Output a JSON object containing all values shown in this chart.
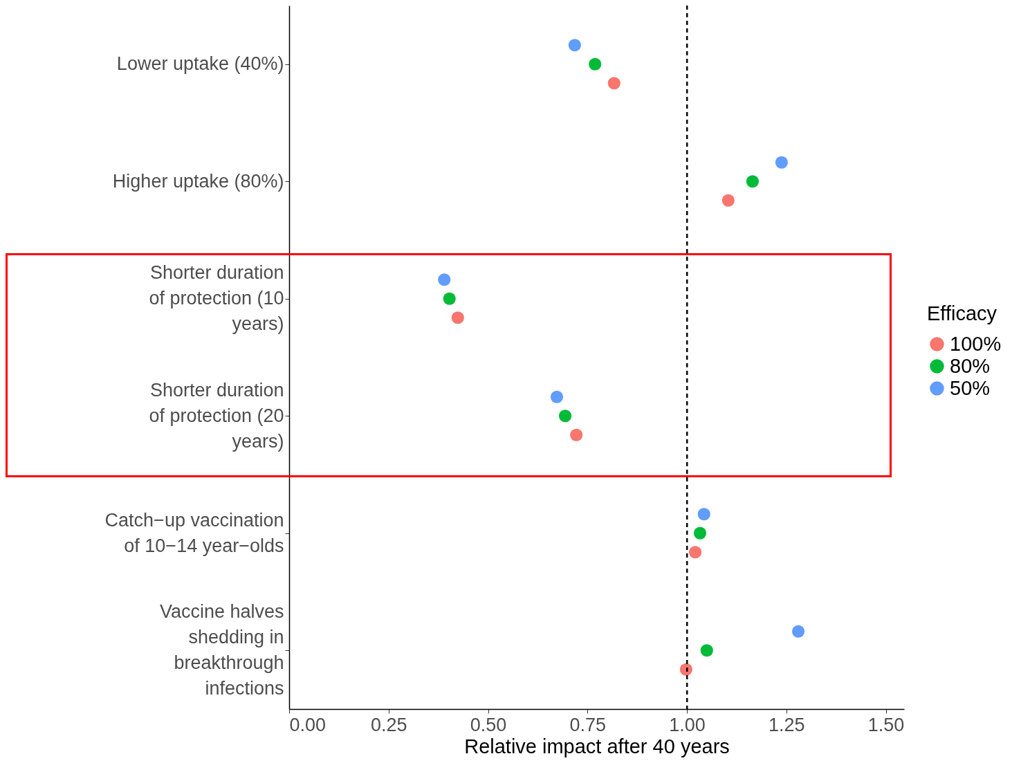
{
  "chart_data": {
    "type": "scatter",
    "xlabel": "Relative impact after 40 years",
    "legend_title": "Efficacy",
    "categories": [
      "Lower uptake (40%)",
      "Higher uptake (80%)",
      "Shorter duration\nof protection (10\nyears)",
      "Shorter duration\nof protection (20\nyears)",
      "Catch−up vaccination\nof 10−14 year−olds",
      "Vaccine halves\nshedding in\nbreakthrough\ninfections"
    ],
    "series": [
      {
        "name": "50%",
        "color": "#619cff",
        "values": [
          0.718,
          1.238,
          0.39,
          0.673,
          1.043,
          1.28
        ]
      },
      {
        "name": "80%",
        "color": "#00ba38",
        "values": [
          0.769,
          1.165,
          0.403,
          0.694,
          1.033,
          1.05
        ]
      },
      {
        "name": "100%",
        "color": "#f8766d",
        "values": [
          0.817,
          1.104,
          0.424,
          0.722,
          1.021,
          0.998
        ]
      }
    ],
    "orientation": "horizontal",
    "xlim": [
      0,
      1.546
    ],
    "xticks": [
      {
        "value": 0,
        "label": "0.00"
      },
      {
        "value": 0.25,
        "label": "0.25"
      },
      {
        "value": 0.5,
        "label": "0.50"
      },
      {
        "value": 0.75,
        "label": "0.75"
      },
      {
        "value": 1,
        "label": "1.00"
      },
      {
        "value": 1.25,
        "label": "1.25"
      },
      {
        "value": 1.5,
        "label": "1.50"
      }
    ],
    "ref_lines": [
      {
        "axis": "x",
        "value": 1,
        "color": "#000000",
        "line_style": "dashed"
      }
    ],
    "legend": "right",
    "grid": false,
    "marker": "circle"
  }
}
